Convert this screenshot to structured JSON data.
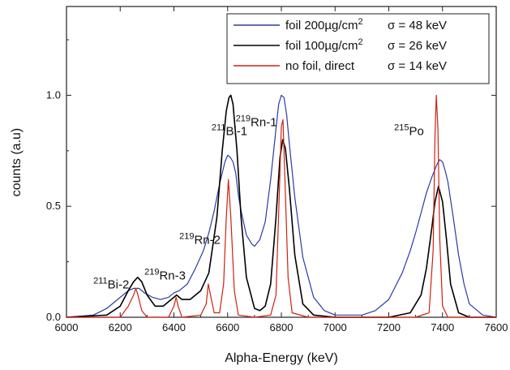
{
  "chart_data": {
    "type": "line",
    "xlabel": "Alpha-Energy (keV)",
    "ylabel": "counts (a.u)",
    "xlim": [
      6000,
      7600
    ],
    "ylim": [
      0,
      1.4
    ],
    "xticks": [
      6000,
      6200,
      6400,
      6600,
      6800,
      7000,
      7200,
      7400,
      7600
    ],
    "xtick_labels": [
      "6000",
      "6200",
      "6400",
      "6600",
      "6800",
      "7000",
      "7200",
      "7400",
      "7600"
    ],
    "yticks": [
      0,
      0.5,
      1.0
    ],
    "ytick_labels": [
      "0.0",
      "0.5",
      "1.0"
    ],
    "grid": false,
    "legend_position": "top-right",
    "series": [
      {
        "name": "foil 200µg/cm²  σ = 48 keV",
        "legend_main": "foil 200µg/cm",
        "legend_sup": "2",
        "legend_sigma": "σ = 48 keV",
        "color": "#2b3aa6",
        "x": [
          6000,
          6100,
          6150,
          6200,
          6230,
          6250,
          6270,
          6290,
          6320,
          6350,
          6380,
          6400,
          6420,
          6450,
          6480,
          6510,
          6530,
          6550,
          6570,
          6580,
          6590,
          6600,
          6610,
          6620,
          6630,
          6640,
          6650,
          6670,
          6690,
          6700,
          6720,
          6740,
          6760,
          6780,
          6790,
          6800,
          6810,
          6820,
          6830,
          6850,
          6880,
          6920,
          6960,
          7000,
          7050,
          7100,
          7150,
          7200,
          7250,
          7280,
          7300,
          7320,
          7340,
          7360,
          7380,
          7390,
          7400,
          7410,
          7420,
          7440,
          7460,
          7480,
          7500,
          7550,
          7600
        ],
        "y": [
          0.0,
          0.01,
          0.04,
          0.09,
          0.12,
          0.13,
          0.13,
          0.11,
          0.09,
          0.08,
          0.09,
          0.11,
          0.12,
          0.15,
          0.22,
          0.3,
          0.38,
          0.48,
          0.6,
          0.65,
          0.7,
          0.73,
          0.72,
          0.7,
          0.65,
          0.55,
          0.48,
          0.37,
          0.33,
          0.32,
          0.35,
          0.43,
          0.62,
          0.85,
          0.96,
          1.0,
          0.99,
          0.91,
          0.78,
          0.54,
          0.27,
          0.09,
          0.03,
          0.01,
          0.01,
          0.01,
          0.03,
          0.08,
          0.2,
          0.3,
          0.38,
          0.47,
          0.56,
          0.63,
          0.69,
          0.71,
          0.7,
          0.66,
          0.61,
          0.45,
          0.28,
          0.15,
          0.06,
          0.01,
          0.0
        ]
      },
      {
        "name": "foil 100µg/cm²  σ = 26 keV",
        "legend_main": "foil 100µg/cm",
        "legend_sup": "2",
        "legend_sigma": "σ = 26 keV",
        "color": "#000000",
        "x": [
          6000,
          6150,
          6200,
          6230,
          6250,
          6265,
          6280,
          6300,
          6330,
          6360,
          6390,
          6410,
          6430,
          6460,
          6500,
          6530,
          6560,
          6580,
          6595,
          6605,
          6612,
          6620,
          6635,
          6650,
          6670,
          6700,
          6720,
          6740,
          6760,
          6780,
          6795,
          6805,
          6815,
          6830,
          6850,
          6880,
          6920,
          7000,
          7200,
          7280,
          7320,
          7340,
          7360,
          7372,
          7385,
          7400,
          7415,
          7430,
          7460,
          7500,
          7600
        ],
        "y": [
          0.0,
          0.01,
          0.05,
          0.12,
          0.16,
          0.18,
          0.16,
          0.1,
          0.05,
          0.05,
          0.08,
          0.1,
          0.08,
          0.08,
          0.12,
          0.2,
          0.45,
          0.75,
          0.93,
          0.99,
          1.0,
          0.96,
          0.75,
          0.45,
          0.18,
          0.04,
          0.03,
          0.05,
          0.15,
          0.45,
          0.72,
          0.8,
          0.76,
          0.58,
          0.28,
          0.06,
          0.01,
          0.0,
          0.0,
          0.02,
          0.1,
          0.22,
          0.4,
          0.52,
          0.59,
          0.52,
          0.35,
          0.15,
          0.02,
          0.0,
          0.0
        ]
      },
      {
        "name": "no foil, direct  σ = 14 keV",
        "legend_main": "no foil, direct",
        "legend_sup": "",
        "legend_sigma": "σ = 14 keV",
        "color": "#d02010",
        "x": [
          6000,
          6200,
          6230,
          6250,
          6258,
          6266,
          6280,
          6300,
          6380,
          6400,
          6408,
          6416,
          6430,
          6500,
          6520,
          6528,
          6536,
          6550,
          6570,
          6585,
          6595,
          6603,
          6612,
          6625,
          6640,
          6700,
          6760,
          6780,
          6792,
          6800,
          6806,
          6814,
          6825,
          6840,
          6900,
          7300,
          7350,
          7365,
          7372,
          7377,
          7383,
          7390,
          7400,
          7420,
          7600
        ],
        "y": [
          0.0,
          0.0,
          0.05,
          0.1,
          0.13,
          0.1,
          0.03,
          0.0,
          0.0,
          0.05,
          0.09,
          0.05,
          0.0,
          0.01,
          0.06,
          0.15,
          0.1,
          0.02,
          0.02,
          0.15,
          0.45,
          0.62,
          0.45,
          0.12,
          0.01,
          0.0,
          0.01,
          0.1,
          0.55,
          0.86,
          0.89,
          0.6,
          0.18,
          0.02,
          0.0,
          0.0,
          0.02,
          0.3,
          0.82,
          1.0,
          0.85,
          0.35,
          0.05,
          0.0,
          0.0
        ]
      }
    ],
    "annotations": [
      {
        "sup": "211",
        "text": "Bi-1",
        "x": 6540,
        "y": 0.82
      },
      {
        "sup": "219",
        "text": "Rn-1",
        "x": 6630,
        "y": 0.86
      },
      {
        "sup": "215",
        "text": "Po",
        "x": 7220,
        "y": 0.82
      },
      {
        "sup": "219",
        "text": "Rn-2",
        "x": 6420,
        "y": 0.33
      },
      {
        "sup": "219",
        "text": "Rn-3",
        "x": 6290,
        "y": 0.17
      },
      {
        "sup": "211",
        "text": "Bi-2",
        "x": 6100,
        "y": 0.13
      }
    ]
  }
}
